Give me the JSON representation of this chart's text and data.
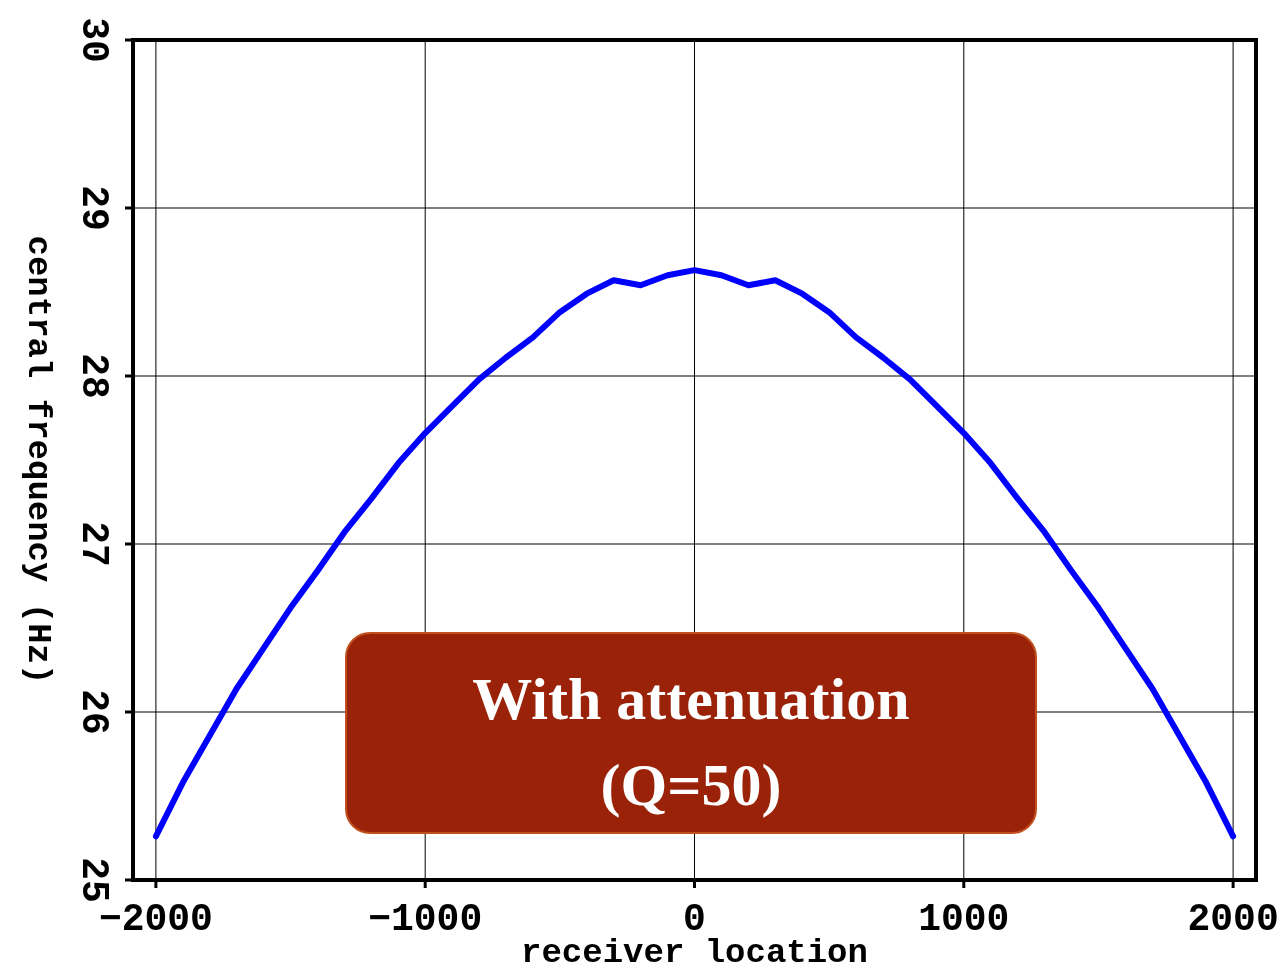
{
  "chart_data": {
    "type": "line",
    "xlabel": "receiver location",
    "ylabel": "central frequency (Hz)",
    "xlim": [
      -2085,
      2085
    ],
    "ylim": [
      25,
      30
    ],
    "xticks": [
      -2000,
      -1000,
      0,
      1000,
      2000
    ],
    "yticks": [
      25,
      26,
      27,
      28,
      29,
      30
    ],
    "grid": true,
    "line_style": "solid",
    "marker": "none",
    "x": [
      -2000,
      -1900,
      -1800,
      -1700,
      -1600,
      -1500,
      -1400,
      -1300,
      -1200,
      -1100,
      -1000,
      -900,
      -800,
      -700,
      -600,
      -500,
      -400,
      -300,
      -200,
      -100,
      0,
      100,
      200,
      300,
      400,
      500,
      600,
      700,
      800,
      900,
      1000,
      1100,
      1200,
      1300,
      1400,
      1500,
      1600,
      1700,
      1800,
      1900,
      2000
    ],
    "series": [
      {
        "color": "#0000ff",
        "values": [
          25.26,
          25.58,
          25.86,
          26.14,
          26.38,
          26.62,
          26.84,
          27.07,
          27.27,
          27.48,
          27.66,
          27.82,
          27.98,
          28.11,
          28.23,
          28.38,
          28.49,
          28.57,
          28.54,
          28.6,
          28.63,
          28.6,
          28.54,
          28.57,
          28.49,
          28.38,
          28.23,
          28.11,
          27.98,
          27.82,
          27.66,
          27.48,
          27.27,
          27.07,
          26.84,
          26.62,
          26.38,
          26.14,
          25.86,
          25.58,
          25.26
        ]
      }
    ],
    "annotations": [
      "With attenuation (Q=50)"
    ]
  }
}
